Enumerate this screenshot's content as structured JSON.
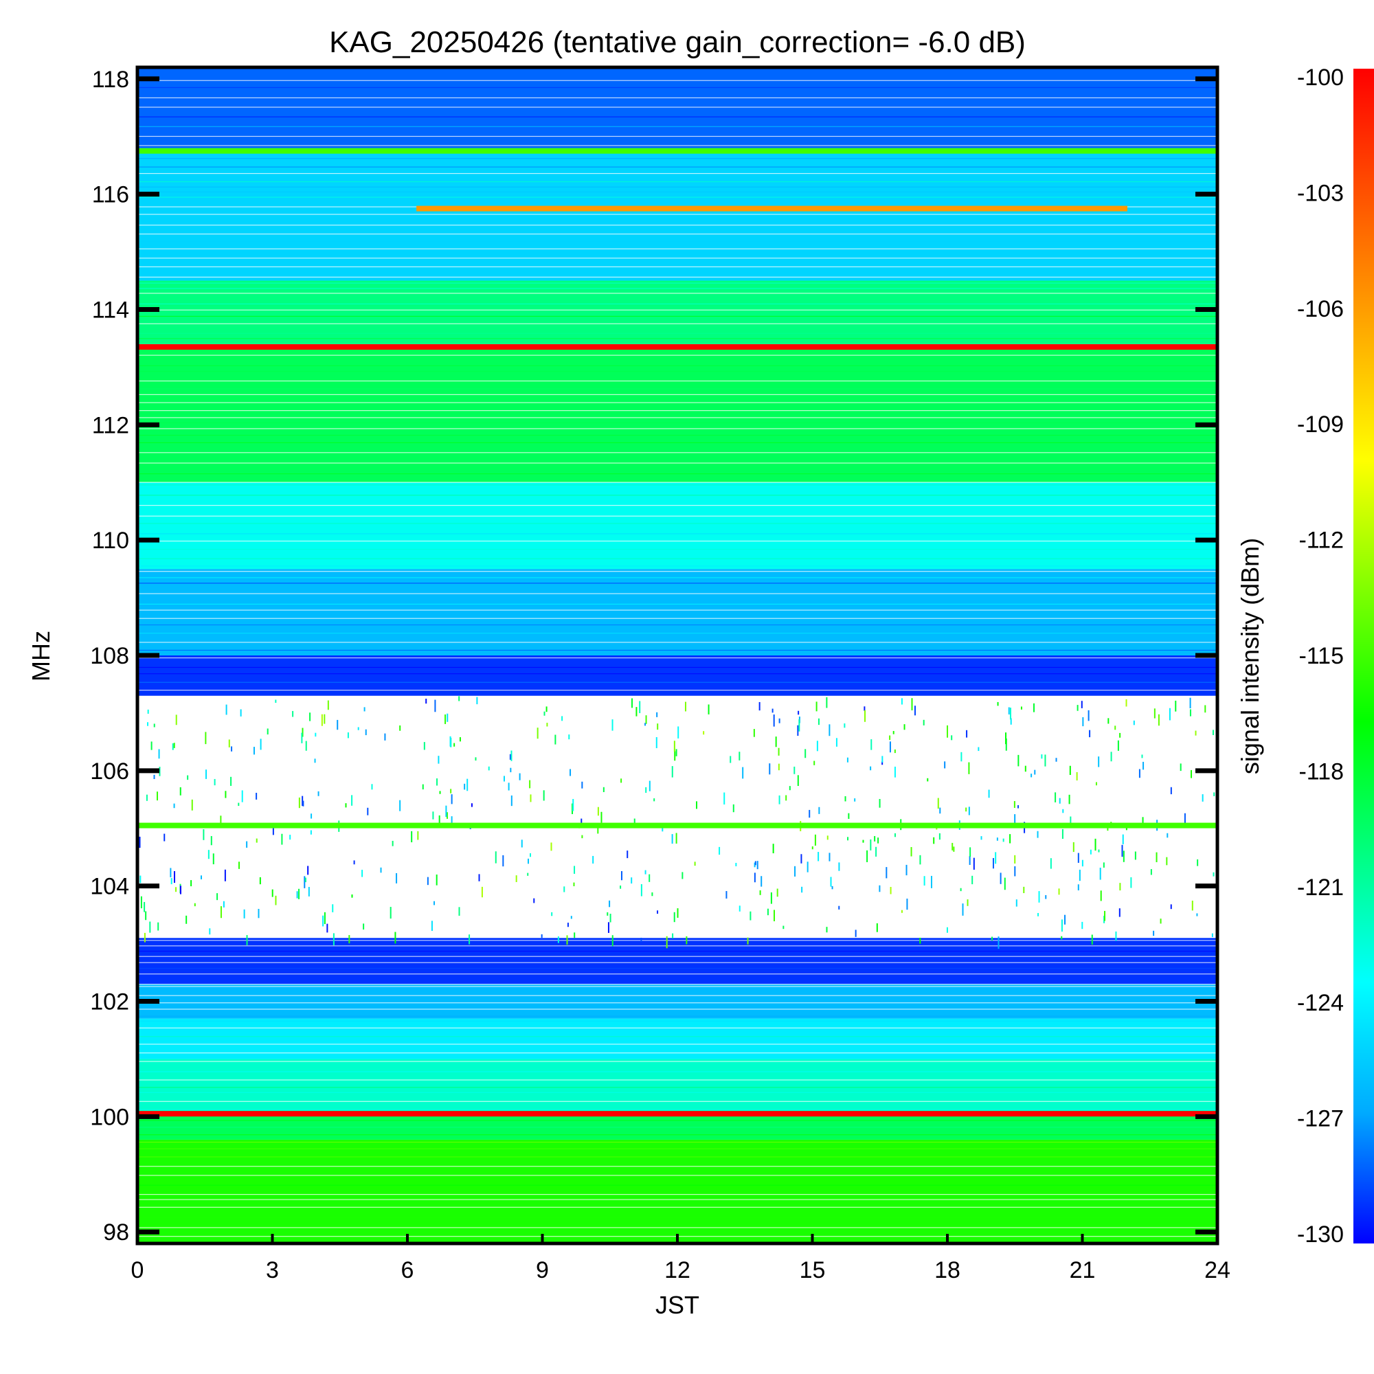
{
  "chart_data": {
    "type": "heatmap",
    "title": "KAG_20250426 (tentative gain_correction= -6.0 dB)",
    "xlabel": "JST",
    "ylabel": "MHz",
    "xlim": [
      0,
      24
    ],
    "ylim": [
      97.8,
      118.2
    ],
    "x_ticks": [
      "0",
      "3",
      "6",
      "9",
      "12",
      "15",
      "18",
      "21",
      "24"
    ],
    "y_ticks": [
      "98",
      "100",
      "102",
      "104",
      "106",
      "108",
      "110",
      "112",
      "114",
      "116",
      "118"
    ],
    "colorbar": {
      "label": "signal intensity (dBm)",
      "range": [
        -130,
        -100
      ],
      "ticks": [
        "-100",
        "-103",
        "-106",
        "-109",
        "-112",
        "-115",
        "-118",
        "-121",
        "-124",
        "-127",
        "-130"
      ],
      "colors": [
        "#0000ff",
        "#00aaff",
        "#00ffff",
        "#00ff7f",
        "#00ff00",
        "#7fff00",
        "#ffff00",
        "#ffaa00",
        "#ff5500",
        "#ff0000"
      ]
    },
    "frequency_bands": [
      {
        "from_mhz": 97.8,
        "to_mhz": 99.6,
        "level_dbm": -116
      },
      {
        "from_mhz": 99.6,
        "to_mhz": 100.1,
        "level_dbm": -119
      },
      {
        "from_mhz": 100.1,
        "to_mhz": 101.0,
        "level_dbm": -122
      },
      {
        "from_mhz": 101.0,
        "to_mhz": 101.7,
        "level_dbm": -124
      },
      {
        "from_mhz": 101.7,
        "to_mhz": 102.3,
        "level_dbm": -126
      },
      {
        "from_mhz": 102.3,
        "to_mhz": 103.1,
        "level_dbm": -129
      },
      {
        "from_mhz": 103.1,
        "to_mhz": 105.2,
        "level_dbm": null
      },
      {
        "from_mhz": 105.2,
        "to_mhz": 107.3,
        "level_dbm": null
      },
      {
        "from_mhz": 107.3,
        "to_mhz": 108.0,
        "level_dbm": -129
      },
      {
        "from_mhz": 108.0,
        "to_mhz": 109.5,
        "level_dbm": -126
      },
      {
        "from_mhz": 109.5,
        "to_mhz": 111.0,
        "level_dbm": -123
      },
      {
        "from_mhz": 111.0,
        "to_mhz": 113.4,
        "level_dbm": -119
      },
      {
        "from_mhz": 113.4,
        "to_mhz": 114.5,
        "level_dbm": -120
      },
      {
        "from_mhz": 114.5,
        "to_mhz": 116.8,
        "level_dbm": -125
      },
      {
        "from_mhz": 116.8,
        "to_mhz": 118.2,
        "level_dbm": -128
      }
    ],
    "strong_lines": [
      {
        "freq_mhz": 113.35,
        "jst_from": 0,
        "jst_to": 24,
        "level_dbm": -100
      },
      {
        "freq_mhz": 100.05,
        "jst_from": 0,
        "jst_to": 24,
        "level_dbm": -100
      },
      {
        "freq_mhz": 116.75,
        "jst_from": 0,
        "jst_to": 24,
        "level_dbm": -115
      },
      {
        "freq_mhz": 105.05,
        "jst_from": 0,
        "jst_to": 24,
        "level_dbm": -115
      },
      {
        "freq_mhz": 115.75,
        "jst_from": 6.2,
        "jst_to": 22.0,
        "level_dbm": -106
      }
    ]
  }
}
